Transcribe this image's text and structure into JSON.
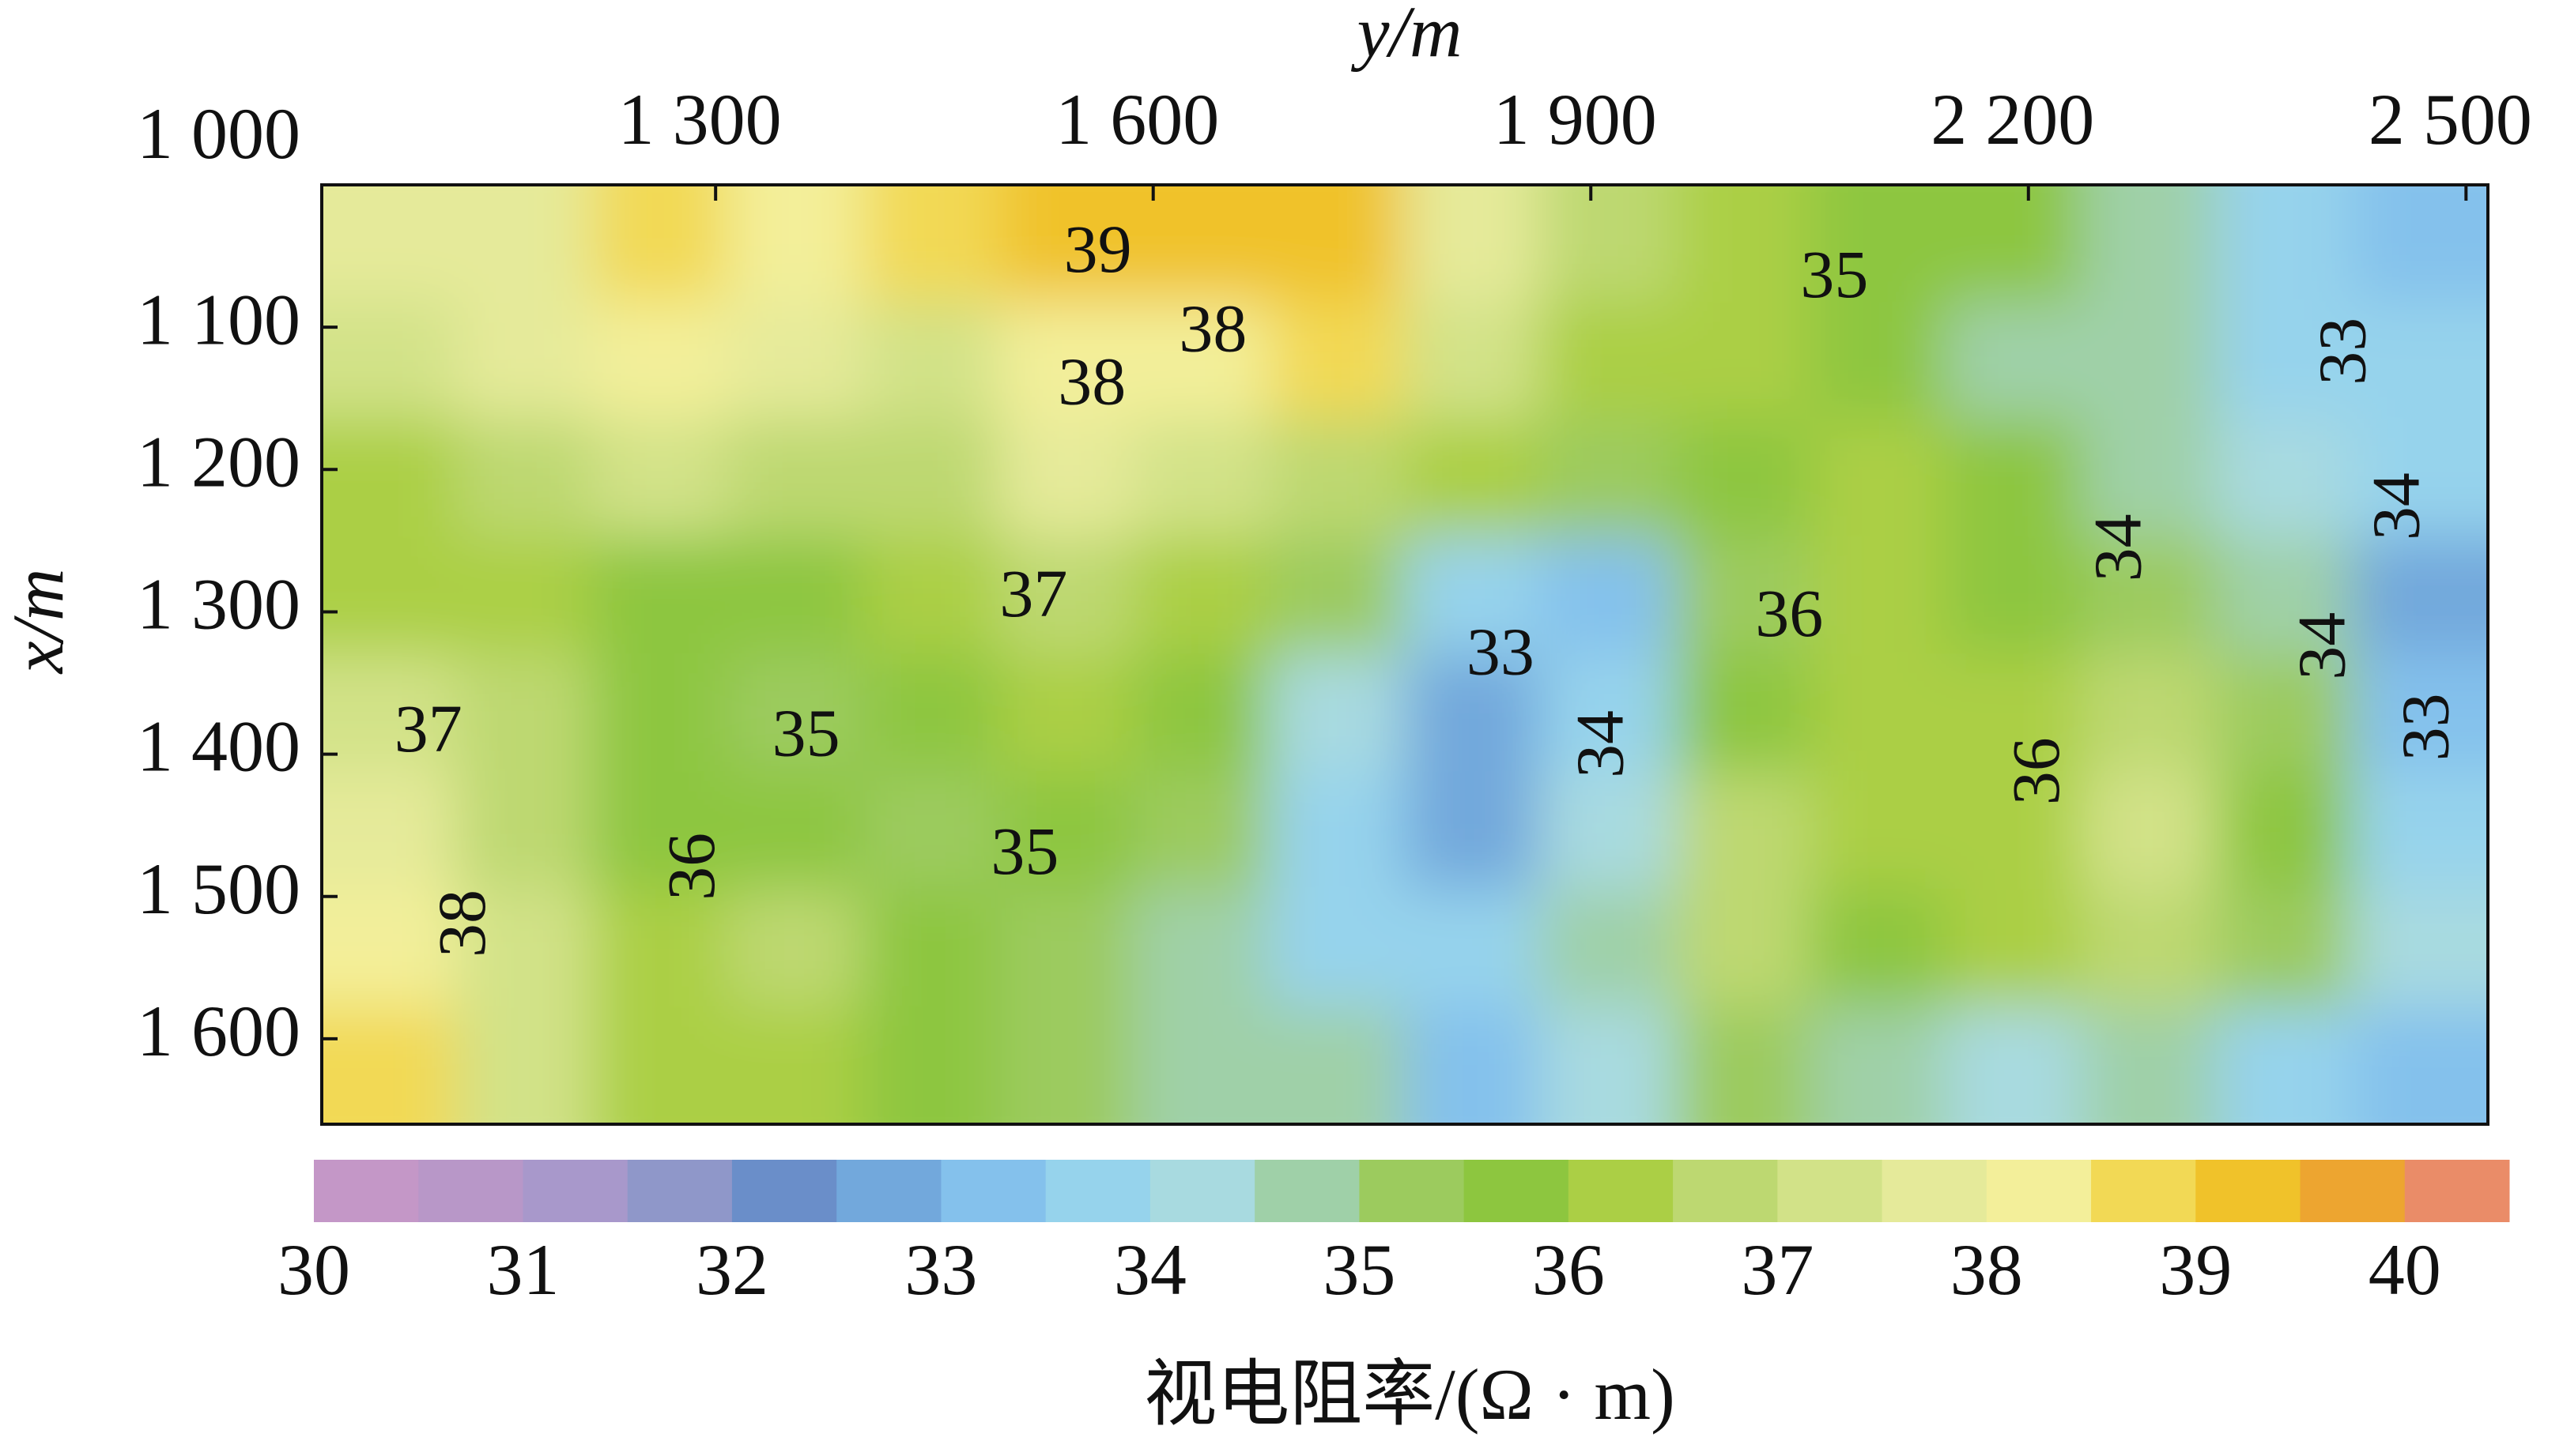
{
  "chart_data": {
    "type": "contour",
    "ylabel": "y/m",
    "xlabel": "x/m",
    "ylim": [
      1030,
      2515
    ],
    "yticks": [
      {
        "value": 1300,
        "label": "1 300"
      },
      {
        "value": 1600,
        "label": "1 600"
      },
      {
        "value": 1900,
        "label": "1 900"
      },
      {
        "value": 2200,
        "label": "2 200"
      },
      {
        "value": 2500,
        "label": "2 500"
      }
    ],
    "xlim": [
      1000,
      1660
    ],
    "xticks": [
      {
        "value": 1000,
        "label": "1 000"
      },
      {
        "value": 1100,
        "label": "1 100"
      },
      {
        "value": 1200,
        "label": "1 200"
      },
      {
        "value": 1300,
        "label": "1 300"
      },
      {
        "value": 1400,
        "label": "1 400"
      },
      {
        "value": 1500,
        "label": "1 500"
      },
      {
        "value": 1600,
        "label": "1 600"
      }
    ],
    "z": [
      [
        37.5,
        37.5,
        38.5,
        38,
        38.5,
        39,
        39,
        39,
        37.5,
        36.5,
        36,
        35.5,
        35.5,
        34.5,
        33.5,
        33
      ],
      [
        37,
        37.5,
        38,
        37.5,
        37,
        38,
        38,
        38.5,
        37,
        36,
        36,
        35.5,
        34.5,
        34.5,
        33.5,
        33.5
      ],
      [
        36,
        36.5,
        37,
        36.5,
        36.5,
        37.5,
        37,
        36.5,
        36,
        35,
        35.5,
        36,
        35.5,
        34.5,
        34,
        33.5
      ],
      [
        36,
        36,
        35.5,
        35.5,
        36,
        36.5,
        36,
        35,
        33.5,
        33,
        35,
        36,
        35.5,
        35,
        34.5,
        32.5
      ],
      [
        37,
        36.5,
        35.5,
        35,
        35.5,
        36,
        35.5,
        34,
        32.5,
        33.5,
        35.5,
        36,
        36,
        36.5,
        35,
        33
      ],
      [
        37.5,
        36.5,
        35.5,
        35.5,
        35,
        35.5,
        35,
        33.5,
        32.5,
        34,
        36.5,
        36,
        36,
        37,
        35.5,
        33.5
      ],
      [
        38,
        37,
        36,
        36.5,
        35.5,
        35,
        34.5,
        33.5,
        33.5,
        34.5,
        36.5,
        35.5,
        36,
        36.5,
        35,
        34
      ],
      [
        38.5,
        37,
        36,
        36,
        35.5,
        35,
        34.5,
        34.5,
        33,
        34,
        35,
        34.5,
        34,
        34.5,
        33.5,
        33
      ]
    ],
    "levels": [
      30,
      30.5,
      31,
      31.5,
      32,
      32.5,
      33,
      33.5,
      34,
      34.5,
      35,
      35.5,
      36,
      36.5,
      37,
      37.5,
      38,
      38.5,
      39,
      39.5,
      40,
      40.5
    ],
    "colors": [
      "#c497c7",
      "#b897c8",
      "#a898cb",
      "#8f97c9",
      "#6a8ec9",
      "#72a8dc",
      "#84c1ec",
      "#96d3ec",
      "#a8dae0",
      "#9fd0a8",
      "#9ccb5e",
      "#8dc63f",
      "#abcf45",
      "#bdd871",
      "#d2e288",
      "#e5ea9a",
      "#f3ef9a",
      "#f2d955",
      "#f0c22a",
      "#eda530",
      "#ea8c68"
    ],
    "colorbar_ticks": [
      30,
      31,
      32,
      33,
      34,
      35,
      36,
      37,
      38,
      39,
      40
    ],
    "colorbar_label": "视电阻率/(Ω · m)",
    "contour_labels": [
      {
        "label": 39,
        "y": 1562,
        "x": 1050
      },
      {
        "label": 38,
        "y": 1641,
        "x": 1106
      },
      {
        "label": 38,
        "y": 1558,
        "x": 1143
      },
      {
        "label": 35,
        "y": 2067,
        "x": 1068
      },
      {
        "label": 37,
        "y": 1518,
        "x": 1292
      },
      {
        "label": 33,
        "y": 1838,
        "x": 1333
      },
      {
        "label": 36,
        "y": 2036,
        "x": 1306
      },
      {
        "label": 35,
        "y": 1362,
        "x": 1390
      },
      {
        "label": 37,
        "y": 1103,
        "x": 1387
      },
      {
        "label": 35,
        "y": 1512,
        "x": 1473
      },
      {
        "label": 36,
        "y": 1288,
        "x": 1479
      },
      {
        "label": 38,
        "y": 1131,
        "x": 1519
      },
      {
        "label": 34,
        "y": 1911,
        "x": 1393
      },
      {
        "label": 36,
        "y": 2210,
        "x": 1412
      },
      {
        "label": 33,
        "y": 2420,
        "x": 1117
      },
      {
        "label": 34,
        "y": 2457,
        "x": 1226
      },
      {
        "label": 34,
        "y": 2266,
        "x": 1255
      },
      {
        "label": 34,
        "y": 2406,
        "x": 1324
      },
      {
        "label": 33,
        "y": 2477,
        "x": 1381
      }
    ]
  }
}
